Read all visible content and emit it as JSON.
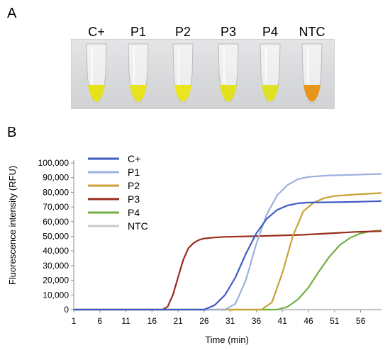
{
  "panels": {
    "a": "A",
    "b": "B"
  },
  "photo": {
    "tubes": [
      {
        "label": "C+",
        "color": "#e6e21a"
      },
      {
        "label": "P1",
        "color": "#e8e31c"
      },
      {
        "label": "P2",
        "color": "#e9e61e"
      },
      {
        "label": "P3",
        "color": "#e2e11e"
      },
      {
        "label": "P4",
        "color": "#dde225"
      },
      {
        "label": "NTC",
        "color": "#e6961b"
      }
    ]
  },
  "chart_data": {
    "type": "line",
    "xlabel": "Time (min)",
    "ylabel": "Fluorescence intensity (RFU)",
    "xlim": [
      1,
      60
    ],
    "ylim": [
      0,
      100000
    ],
    "x_ticks": [
      1,
      6,
      11,
      16,
      21,
      26,
      31,
      36,
      41,
      46,
      51,
      56
    ],
    "y_ticks": [
      0,
      10000,
      20000,
      30000,
      40000,
      50000,
      60000,
      70000,
      80000,
      90000,
      100000
    ],
    "y_tick_labels": [
      "0",
      "10,000",
      "20,000",
      "30,000",
      "40,000",
      "50,000",
      "60,000",
      "70,000",
      "80,000",
      "90,000",
      "100,000"
    ],
    "legend_position": "top-left",
    "series": [
      {
        "name": "C+",
        "color": "#3f5cc4",
        "x": [
          1,
          26,
          28,
          30,
          32,
          34,
          36,
          38,
          40,
          42,
          44,
          46,
          50,
          55,
          60
        ],
        "y": [
          0,
          0,
          3000,
          10000,
          22000,
          38000,
          52000,
          62000,
          68000,
          71000,
          72500,
          73000,
          73200,
          73500,
          74000
        ]
      },
      {
        "name": "P1",
        "color": "#9eb0e0",
        "x": [
          1,
          30,
          32,
          34,
          36,
          38,
          40,
          42,
          44,
          46,
          48,
          50,
          55,
          60
        ],
        "y": [
          0,
          0,
          4000,
          20000,
          45000,
          65000,
          78000,
          85000,
          89000,
          90500,
          91000,
          91500,
          92000,
          92500
        ]
      },
      {
        "name": "P2",
        "color": "#c9a233",
        "x": [
          1,
          37,
          39,
          41,
          43,
          45,
          47,
          49,
          51,
          55,
          60
        ],
        "y": [
          0,
          0,
          5000,
          25000,
          50000,
          67000,
          73000,
          76000,
          77500,
          78500,
          79500
        ]
      },
      {
        "name": "P3",
        "color": "#9a2c1c",
        "x": [
          1,
          18,
          19,
          20,
          21,
          22,
          23,
          24,
          25,
          26,
          28,
          30,
          35,
          40,
          45,
          50,
          55,
          60
        ],
        "y": [
          0,
          0,
          2000,
          10000,
          22000,
          34000,
          42000,
          45500,
          47500,
          48500,
          49200,
          49600,
          50000,
          50500,
          51000,
          52000,
          53000,
          53500
        ]
      },
      {
        "name": "P4",
        "color": "#72b043",
        "x": [
          1,
          40,
          42,
          44,
          46,
          48,
          50,
          52,
          54,
          56,
          58,
          60
        ],
        "y": [
          0,
          0,
          2000,
          7000,
          15000,
          26000,
          36000,
          44000,
          49000,
          52000,
          53500,
          54000
        ]
      },
      {
        "name": "NTC",
        "color": "#c8c8c8",
        "x": [
          1,
          60
        ],
        "y": [
          0,
          0
        ]
      }
    ]
  }
}
